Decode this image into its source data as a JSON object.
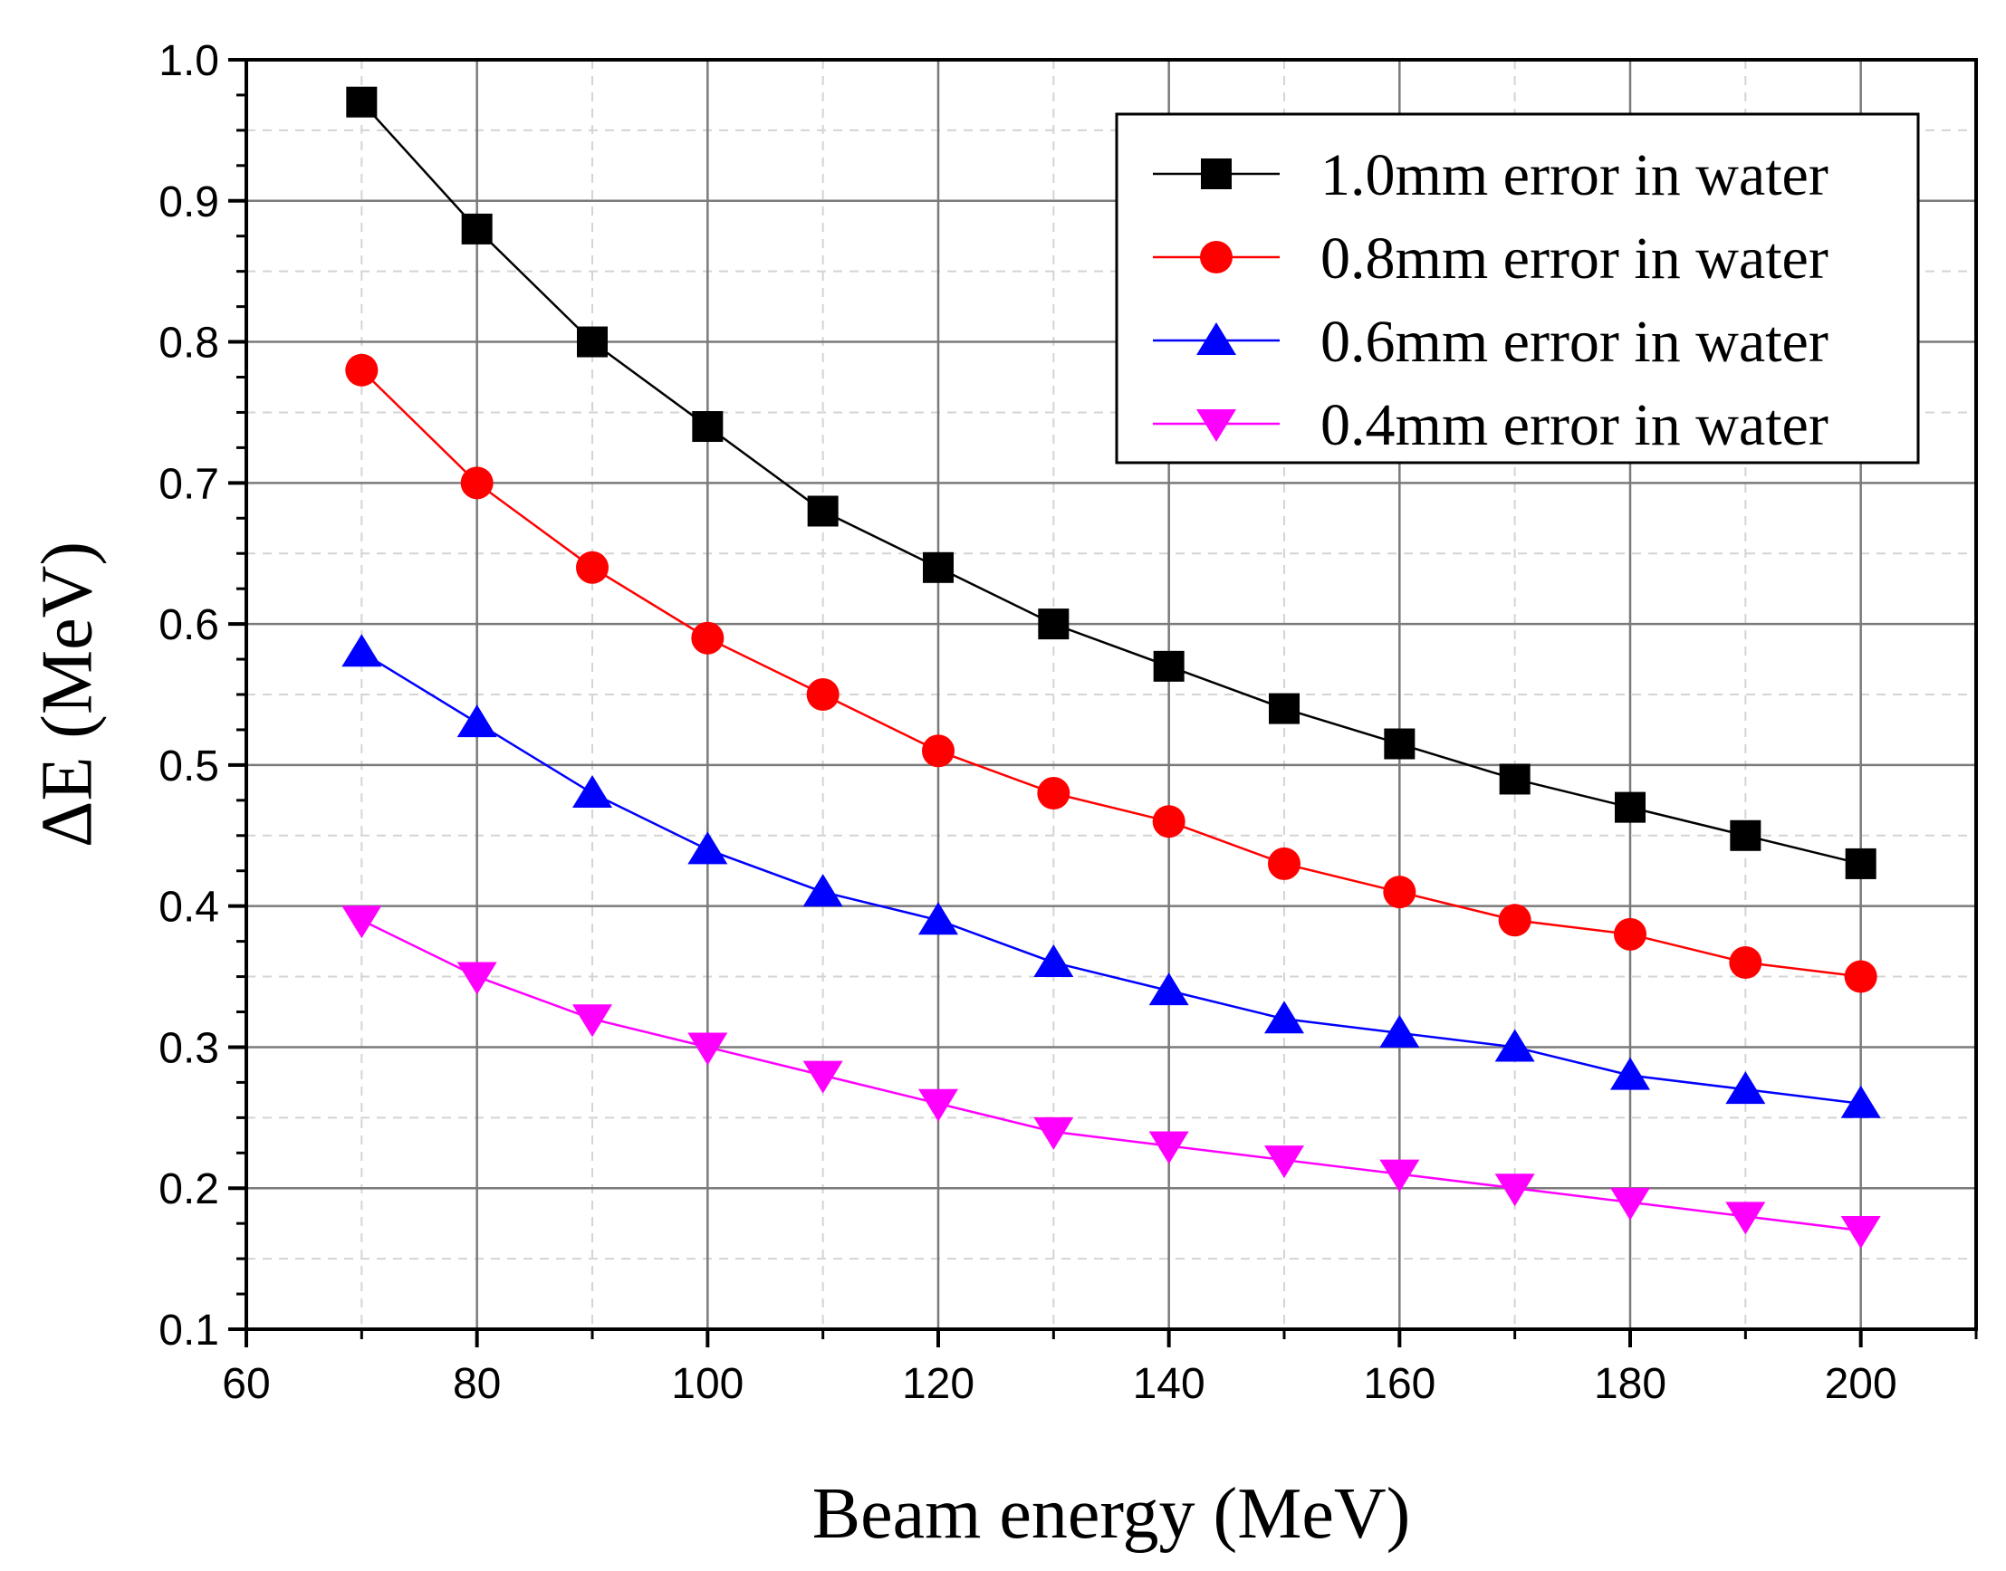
{
  "chart_data": {
    "type": "line",
    "title": "",
    "xlabel": "Beam energy (MeV)",
    "ylabel": "ΔE (MeV)",
    "xlim": [
      60,
      210
    ],
    "ylim": [
      0.1,
      1.0
    ],
    "x_ticks": [
      60,
      80,
      100,
      120,
      140,
      160,
      180,
      200
    ],
    "y_ticks": [
      0.1,
      0.2,
      0.3,
      0.4,
      0.5,
      0.6,
      0.7,
      0.8,
      0.9,
      1.0
    ],
    "x_tick_labels": [
      "60",
      "80",
      "100",
      "120",
      "140",
      "160",
      "180",
      "200"
    ],
    "y_tick_labels": [
      "0.1",
      "0.2",
      "0.3",
      "0.4",
      "0.5",
      "0.6",
      "0.7",
      "0.8",
      "0.9",
      "1.0"
    ],
    "grid": true,
    "legend_position": "top-right",
    "x": [
      70,
      80,
      90,
      100,
      110,
      120,
      130,
      140,
      150,
      160,
      170,
      180,
      190,
      200
    ],
    "series": [
      {
        "name": "1.0mm error in water",
        "color": "#000000",
        "marker": "square",
        "values": [
          0.97,
          0.88,
          0.8,
          0.74,
          0.68,
          0.64,
          0.6,
          0.57,
          0.54,
          0.515,
          0.49,
          0.47,
          0.45,
          0.43
        ]
      },
      {
        "name": "0.8mm error in water",
        "color": "#ff0000",
        "marker": "circle",
        "values": [
          0.78,
          0.7,
          0.64,
          0.59,
          0.55,
          0.51,
          0.48,
          0.46,
          0.43,
          0.41,
          0.39,
          0.38,
          0.36,
          0.35
        ]
      },
      {
        "name": "0.6mm error in water",
        "color": "#0000ff",
        "marker": "triangle-up",
        "values": [
          0.58,
          0.53,
          0.48,
          0.44,
          0.41,
          0.39,
          0.36,
          0.34,
          0.32,
          0.31,
          0.3,
          0.28,
          0.27,
          0.26
        ]
      },
      {
        "name": "0.4mm error in water",
        "color": "#ff00ff",
        "marker": "triangle-down",
        "values": [
          0.39,
          0.35,
          0.32,
          0.3,
          0.28,
          0.26,
          0.24,
          0.23,
          0.22,
          0.21,
          0.2,
          0.19,
          0.18,
          0.17
        ]
      }
    ]
  }
}
